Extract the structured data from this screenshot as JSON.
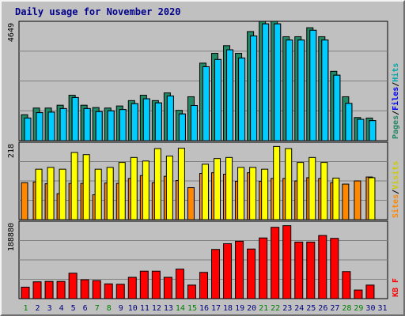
{
  "title": "Daily usage for November 2020",
  "colors": {
    "pages": "#228866",
    "files": "#00ccff",
    "hits": "#00ccff",
    "sites": "#ff8800",
    "visits": "#ffff00",
    "kbytes": "#ff0000",
    "day_normal": "#000080",
    "day_weekend": "#008000"
  },
  "chart_data": [
    {
      "type": "bar",
      "title": "Daily usage for November 2020",
      "categories": [
        "1",
        "2",
        "3",
        "4",
        "5",
        "6",
        "7",
        "8",
        "9",
        "10",
        "11",
        "12",
        "13",
        "14",
        "15",
        "16",
        "17",
        "18",
        "19",
        "20",
        "21",
        "22",
        "23",
        "24",
        "25",
        "26",
        "27",
        "28",
        "29",
        "30",
        "31"
      ],
      "weekend_days": [
        "1",
        "7",
        "8",
        "14",
        "15",
        "21",
        "22",
        "28",
        "29"
      ],
      "y_max_label": "4649",
      "ylim": [
        0,
        4649
      ],
      "legend_right": [
        {
          "text": "Pages",
          "color": "#228866"
        },
        {
          "text": "/",
          "color": "#000000"
        },
        {
          "text": "Files",
          "color": "#0000ff"
        },
        {
          "text": "/",
          "color": "#000000"
        },
        {
          "text": "Hits",
          "color": "#00aaaa"
        }
      ],
      "series": [
        {
          "name": "Pages",
          "color": "#228866",
          "values": [
            1010,
            1270,
            1270,
            1380,
            1770,
            1380,
            1290,
            1270,
            1350,
            1560,
            1770,
            1560,
            1860,
            1180,
            1710,
            3020,
            3400,
            3700,
            3400,
            4250,
            4650,
            4650,
            4050,
            4050,
            4400,
            4050,
            2700,
            1710,
            900,
            880,
            0
          ]
        },
        {
          "name": "Files",
          "color": "#00ccff",
          "values": [
            880,
            1090,
            1110,
            1250,
            1680,
            1250,
            1130,
            1160,
            1210,
            1440,
            1630,
            1470,
            1740,
            1040,
            1370,
            2880,
            3160,
            3540,
            3220,
            4080,
            4550,
            4550,
            3920,
            3920,
            4300,
            3920,
            2550,
            1450,
            830,
            780,
            0
          ]
        },
        {
          "name": "Hits",
          "color": "#00ccff",
          "values": [
            880,
            1090,
            1110,
            1250,
            1680,
            1250,
            1130,
            1160,
            1210,
            1440,
            1630,
            1470,
            1740,
            1040,
            1370,
            2880,
            3160,
            3540,
            3220,
            4080,
            4550,
            4550,
            3920,
            3920,
            4300,
            3920,
            2550,
            1450,
            830,
            780,
            0
          ]
        }
      ]
    },
    {
      "type": "bar",
      "categories": [
        "1",
        "2",
        "3",
        "4",
        "5",
        "6",
        "7",
        "8",
        "9",
        "10",
        "11",
        "12",
        "13",
        "14",
        "15",
        "16",
        "17",
        "18",
        "19",
        "20",
        "21",
        "22",
        "23",
        "24",
        "25",
        "26",
        "27",
        "28",
        "29",
        "30",
        "31"
      ],
      "y_max_label": "218",
      "ylim": [
        0,
        218
      ],
      "legend_right": [
        {
          "text": "Sites",
          "color": "#ff8800"
        },
        {
          "text": "/",
          "color": "#000000"
        },
        {
          "text": "Visits",
          "color": "#cccc00"
        }
      ],
      "series": [
        {
          "name": "Sites",
          "color": "#ff8800",
          "values": [
            104,
            106,
            101,
            73,
            102,
            102,
            70,
            103,
            102,
            116,
            124,
            104,
            122,
            110,
            90,
            130,
            132,
            128,
            108,
            132,
            108,
            116,
            116,
            109,
            118,
            116,
            104,
            100,
            109,
            120,
            0
          ]
        },
        {
          "name": "Visits",
          "color": "#ffff00",
          "values": [
            0,
            142,
            147,
            142,
            189,
            183,
            142,
            147,
            161,
            175,
            165,
            200,
            179,
            201,
            0,
            156,
            172,
            175,
            147,
            147,
            142,
            206,
            200,
            161,
            175,
            161,
            117,
            0,
            0,
            118,
            0
          ]
        }
      ]
    },
    {
      "type": "bar",
      "categories": [
        "1",
        "2",
        "3",
        "4",
        "5",
        "6",
        "7",
        "8",
        "9",
        "10",
        "11",
        "12",
        "13",
        "14",
        "15",
        "16",
        "17",
        "18",
        "19",
        "20",
        "21",
        "22",
        "23",
        "24",
        "25",
        "26",
        "27",
        "28",
        "29",
        "30",
        "31"
      ],
      "y_max_label": "188880",
      "ylim": [
        0,
        188880
      ],
      "legend_right": [
        {
          "text": "KB F",
          "color": "#ff0000"
        }
      ],
      "series": [
        {
          "name": "KB F",
          "color": "#ff0000",
          "values": [
            28000,
            41000,
            42000,
            42000,
            62000,
            46000,
            44000,
            36000,
            35000,
            52000,
            67000,
            67000,
            52000,
            72000,
            33000,
            64000,
            120000,
            134000,
            140000,
            121000,
            148000,
            174000,
            178000,
            138000,
            138000,
            154000,
            147000,
            66000,
            21000,
            33000,
            0
          ]
        }
      ]
    }
  ]
}
